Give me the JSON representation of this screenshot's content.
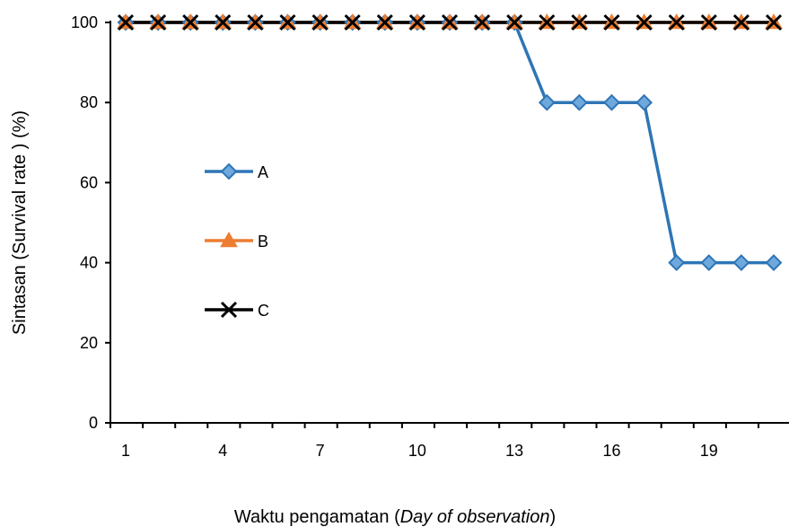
{
  "chart_data": {
    "type": "line",
    "title": "",
    "xlabel": {
      "prefix": "Waktu pengamatan (",
      "italic": "Day of  observation",
      "suffix": ")"
    },
    "ylabel": "Sintasan (Survival rate ) (%)",
    "x": [
      1,
      2,
      3,
      4,
      5,
      6,
      7,
      8,
      9,
      10,
      11,
      12,
      13,
      14,
      15,
      16,
      17,
      18,
      19,
      20,
      21
    ],
    "x_tick_labels": [
      "1",
      "4",
      "7",
      "10",
      "13",
      "16",
      "19"
    ],
    "x_tick_values": [
      1,
      4,
      7,
      10,
      13,
      16,
      19
    ],
    "ylim": [
      0,
      100
    ],
    "y_ticks": [
      0,
      20,
      40,
      60,
      80,
      100
    ],
    "y_tick_labels": [
      "0",
      "20",
      "40",
      "60",
      "80",
      "100"
    ],
    "grid": false,
    "legend_position": "left-middle",
    "series": [
      {
        "name": "A",
        "color": "#2e75b6",
        "marker": "diamond",
        "values": [
          100,
          100,
          100,
          100,
          100,
          100,
          100,
          100,
          100,
          100,
          100,
          100,
          100,
          80,
          80,
          80,
          80,
          40,
          40,
          40,
          40
        ]
      },
      {
        "name": "B",
        "color": "#ed7d31",
        "marker": "triangle",
        "values": [
          100,
          100,
          100,
          100,
          100,
          100,
          100,
          100,
          100,
          100,
          100,
          100,
          100,
          100,
          100,
          100,
          100,
          100,
          100,
          100,
          100
        ]
      },
      {
        "name": "C",
        "color": "#000000",
        "marker": "x",
        "values": [
          100,
          100,
          100,
          100,
          100,
          100,
          100,
          100,
          100,
          100,
          100,
          100,
          100,
          100,
          100,
          100,
          100,
          100,
          100,
          100,
          100
        ]
      }
    ]
  }
}
